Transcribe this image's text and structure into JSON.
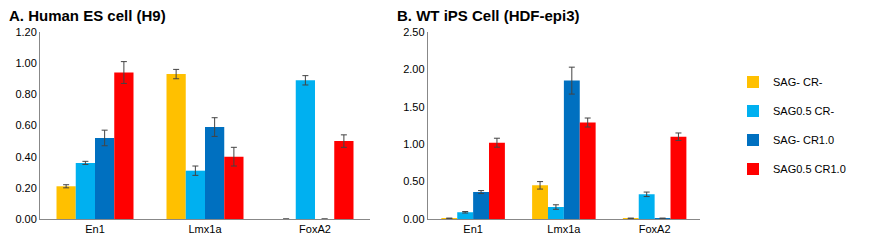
{
  "chart_data": [
    {
      "type": "bar",
      "title": "A. Human ES cell (H9)",
      "categories": [
        "En1",
        "Lmx1a",
        "FoxA2"
      ],
      "series": [
        {
          "name": "SAG- CR-",
          "color": "#FFC000",
          "values": [
            0.21,
            0.93,
            0.0
          ],
          "errors": [
            0.01,
            0.03,
            0.0
          ]
        },
        {
          "name": "SAG0.5 CR-",
          "color": "#00B0F0",
          "values": [
            0.36,
            0.31,
            0.89
          ],
          "errors": [
            0.01,
            0.03,
            0.03
          ]
        },
        {
          "name": "SAG- CR1.0",
          "color": "#0070C0",
          "values": [
            0.52,
            0.59,
            0.0
          ],
          "errors": [
            0.05,
            0.06,
            0.0
          ]
        },
        {
          "name": "SAG0.5 CR1.0",
          "color": "#FF0000",
          "values": [
            0.94,
            0.4,
            0.5
          ],
          "errors": [
            0.07,
            0.06,
            0.04
          ]
        }
      ],
      "ylim": [
        0,
        1.2
      ],
      "yticks": [
        {
          "value": 0,
          "label": "0.00"
        },
        {
          "value": 0.2,
          "label": "0.20"
        },
        {
          "value": 0.4,
          "label": "0.40"
        },
        {
          "value": 0.6,
          "label": "0.60"
        },
        {
          "value": 0.8,
          "label": "0.80"
        },
        {
          "value": 1.0,
          "label": "1.00"
        },
        {
          "value": 1.2,
          "label": "1.20"
        }
      ],
      "grid": false,
      "legend": "right"
    },
    {
      "type": "bar",
      "title": "B. WT iPS Cell (HDF-epi3)",
      "categories": [
        "En1",
        "Lmx1a",
        "FoxA2"
      ],
      "series": [
        {
          "name": "SAG- CR-",
          "color": "#FFC000",
          "values": [
            0.01,
            0.45,
            0.01
          ],
          "errors": [
            0.0,
            0.05,
            0.0
          ]
        },
        {
          "name": "SAG0.5 CR-",
          "color": "#00B0F0",
          "values": [
            0.09,
            0.16,
            0.33
          ],
          "errors": [
            0.01,
            0.03,
            0.03
          ]
        },
        {
          "name": "SAG- CR1.0",
          "color": "#0070C0",
          "values": [
            0.36,
            1.85,
            0.01
          ],
          "errors": [
            0.02,
            0.18,
            0.0
          ]
        },
        {
          "name": "SAG0.5 CR1.0",
          "color": "#FF0000",
          "values": [
            1.02,
            1.29,
            1.1
          ],
          "errors": [
            0.06,
            0.06,
            0.05
          ]
        }
      ],
      "ylim": [
        0,
        2.5
      ],
      "yticks": [
        {
          "value": 0,
          "label": "0.00"
        },
        {
          "value": 0.5,
          "label": "0.50"
        },
        {
          "value": 1.0,
          "label": "1.00"
        },
        {
          "value": 1.5,
          "label": "1.50"
        },
        {
          "value": 2.0,
          "label": "2.00"
        },
        {
          "value": 2.5,
          "label": "2.50"
        }
      ],
      "grid": false
    }
  ]
}
